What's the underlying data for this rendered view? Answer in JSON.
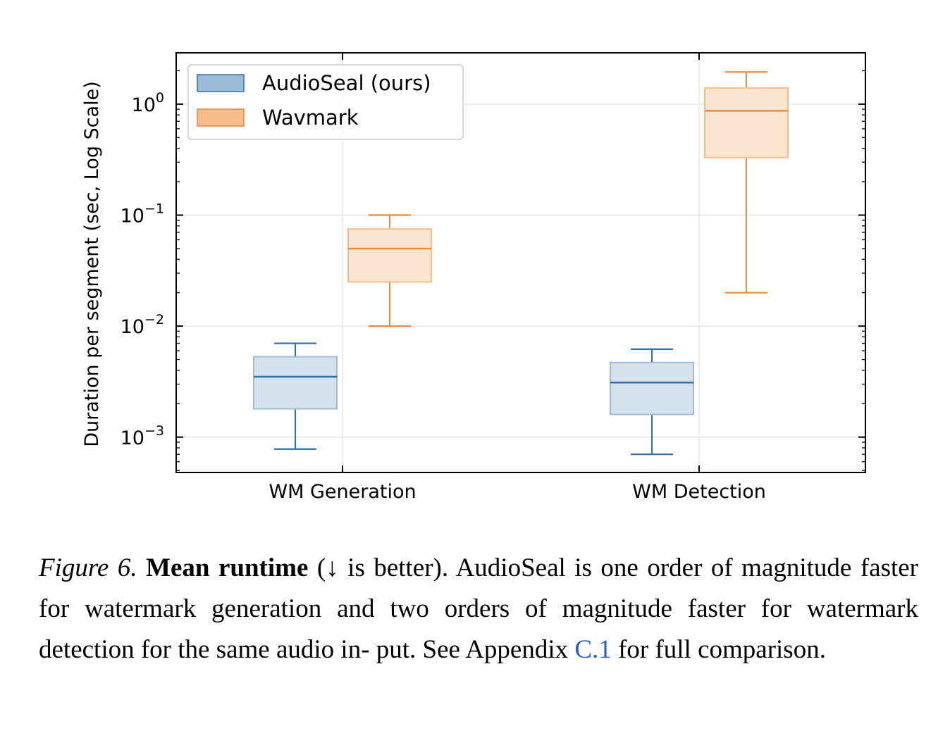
{
  "chart_data": {
    "type": "box",
    "ylabel": "Duration per segment (sec, Log Scale)",
    "yscale": "log",
    "ylim": [
      0.00048,
      2.9
    ],
    "yticks": [
      {
        "value": 0.001,
        "base": "10",
        "exp": "−3"
      },
      {
        "value": 0.01,
        "base": "10",
        "exp": "−2"
      },
      {
        "value": 0.1,
        "base": "10",
        "exp": "−1"
      },
      {
        "value": 1,
        "base": "10",
        "exp": "0"
      }
    ],
    "categories": [
      "WM Generation",
      "WM Detection"
    ],
    "grid": true,
    "legend_position": "upper-left",
    "series": [
      {
        "name": "AudioSeal (ours)",
        "color": "#2f6ea8",
        "fill": "#d6e3ef",
        "legend_fill": "#9bbbd7",
        "boxes": [
          {
            "whislo": 0.00078,
            "q1": 0.0018,
            "med": 0.0035,
            "q3": 0.0053,
            "whishi": 0.007
          },
          {
            "whislo": 0.0007,
            "q1": 0.0016,
            "med": 0.0031,
            "q3": 0.0047,
            "whishi": 0.0062
          }
        ]
      },
      {
        "name": "Wavmark",
        "color": "#ec8a3b",
        "fill": "#fbe4d0",
        "legend_fill": "#f5bd8e",
        "boxes": [
          {
            "whislo": 0.01,
            "q1": 0.025,
            "med": 0.05,
            "q3": 0.075,
            "whishi": 0.1
          },
          {
            "whislo": 0.02,
            "q1": 0.33,
            "med": 0.87,
            "q3": 1.4,
            "whishi": 1.95
          }
        ]
      }
    ]
  },
  "caption": {
    "label": "Figure 6.",
    "title": "Mean runtime",
    "paren": "(↓ is better).",
    "body": "AudioSeal is one order of magnitude faster for watermark generation and two orders of magnitude faster for watermark detection for the same audio in- put. See Appendix",
    "link": "C.1",
    "end": "for full comparison."
  }
}
